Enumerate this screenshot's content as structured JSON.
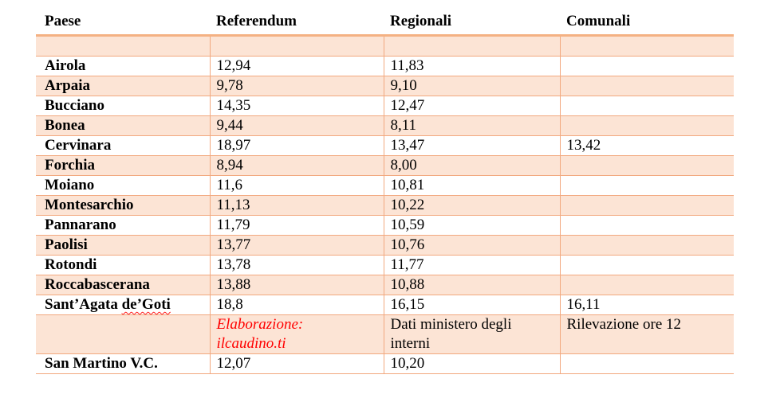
{
  "page": {
    "background_color": "#ffffff"
  },
  "table": {
    "columns": [
      "Paese",
      "Referendum",
      "Regionali",
      "Comunali"
    ],
    "style": {
      "border_color": "#f2a87e",
      "header_rule_color": "#f4b183",
      "shade_color": "#fce4d5",
      "text_color": "#000000",
      "credit_color": "#ff0000"
    },
    "rows": [
      {
        "paese": "",
        "referendum": "",
        "regionali": "",
        "comunali": "",
        "shaded": true
      },
      {
        "paese": "Airola",
        "referendum": "12,94",
        "regionali": "11,83",
        "comunali": "",
        "shaded": false
      },
      {
        "paese": "Arpaia",
        "referendum": "9,78",
        "regionali": "9,10",
        "comunali": "",
        "shaded": true
      },
      {
        "paese": "Bucciano",
        "referendum": "14,35",
        "regionali": "12,47",
        "comunali": "",
        "shaded": false
      },
      {
        "paese": "Bonea",
        "referendum": "9,44",
        "regionali": "8,11",
        "comunali": "",
        "shaded": true
      },
      {
        "paese": "Cervinara",
        "referendum": "18,97",
        "regionali": "13,47",
        "comunali": "13,42",
        "shaded": false
      },
      {
        "paese": "Forchia",
        "referendum": "8,94",
        "regionali": "8,00",
        "comunali": "",
        "shaded": true
      },
      {
        "paese": "Moiano",
        "referendum": "11,6",
        "regionali": "10,81",
        "comunali": "",
        "shaded": false
      },
      {
        "paese": "Montesarchio",
        "referendum": "11,13",
        "regionali": "10,22",
        "comunali": "",
        "shaded": true
      },
      {
        "paese": "Pannarano",
        "referendum": "11,79",
        "regionali": "10,59",
        "comunali": "",
        "shaded": false
      },
      {
        "paese": "Paolisi",
        "referendum": "13,77",
        "regionali": "10,76",
        "comunali": "",
        "shaded": true
      },
      {
        "paese": "Rotondi",
        "referendum": "13,78",
        "regionali": "11,77",
        "comunali": "",
        "shaded": false
      },
      {
        "paese": "Roccabascerana",
        "referendum": "13,88",
        "regionali": "10,88",
        "comunali": "",
        "shaded": true
      },
      {
        "paese": "Sant’Agata ",
        "paese_squiggle": "de’Goti",
        "referendum": "18,8",
        "regionali": "16,15",
        "comunali": "16,11",
        "shaded": false
      },
      {
        "paese": "",
        "referendum": "Elaborazione:\nilcaudino.ti",
        "credit": true,
        "regionali": "Dati ministero degli interni",
        "comunali": "Rilevazione ore 12",
        "shaded": true
      },
      {
        "paese": "San Martino V.C.",
        "referendum": "12,07",
        "regionali": "10,20",
        "comunali": "",
        "shaded": false
      }
    ]
  }
}
